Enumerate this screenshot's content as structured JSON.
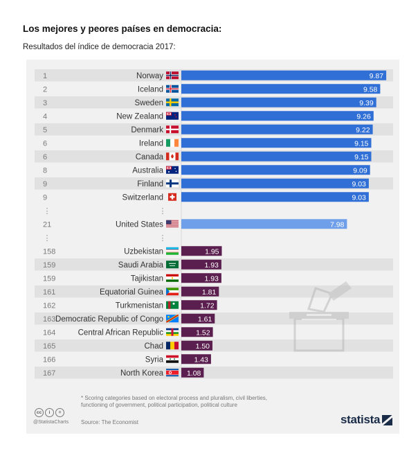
{
  "heading": {
    "title": "Los mejores y peores países en democracia:",
    "subtitle": "Resultados del índice de democracia 2017:"
  },
  "chart_data": {
    "type": "bar",
    "orientation": "horizontal",
    "title": "Los mejores y peores países en democracia:",
    "subtitle": "Resultados del índice de democracia 2017:",
    "xlim": [
      0,
      10
    ],
    "gap_marker": "⋮",
    "rows": [
      {
        "rank": "1",
        "country": "Norway",
        "value": 9.87,
        "label": "9.87",
        "group": "top",
        "flag": "norway"
      },
      {
        "rank": "2",
        "country": "Iceland",
        "value": 9.58,
        "label": "9.58",
        "group": "top",
        "flag": "iceland"
      },
      {
        "rank": "3",
        "country": "Sweden",
        "value": 9.39,
        "label": "9.39",
        "group": "top",
        "flag": "sweden"
      },
      {
        "rank": "4",
        "country": "New Zealand",
        "value": 9.26,
        "label": "9.26",
        "group": "top",
        "flag": "new-zealand"
      },
      {
        "rank": "5",
        "country": "Denmark",
        "value": 9.22,
        "label": "9.22",
        "group": "top",
        "flag": "denmark"
      },
      {
        "rank": "6",
        "country": "Ireland",
        "value": 9.15,
        "label": "9.15",
        "group": "top",
        "flag": "ireland"
      },
      {
        "rank": "6",
        "country": "Canada",
        "value": 9.15,
        "label": "9.15",
        "group": "top",
        "flag": "canada"
      },
      {
        "rank": "8",
        "country": "Australia",
        "value": 9.09,
        "label": "9.09",
        "group": "top",
        "flag": "australia"
      },
      {
        "rank": "9",
        "country": "Finland",
        "value": 9.03,
        "label": "9.03",
        "group": "top",
        "flag": "finland"
      },
      {
        "rank": "9",
        "country": "Switzerland",
        "value": 9.03,
        "label": "9.03",
        "group": "top",
        "flag": "switzerland"
      },
      {
        "gap": true
      },
      {
        "rank": "21",
        "country": "United States",
        "value": 7.98,
        "label": "7.98",
        "group": "mid",
        "flag": "united-states"
      },
      {
        "gap": true
      },
      {
        "rank": "158",
        "country": "Uzbekistan",
        "value": 1.95,
        "label": "1.95",
        "group": "bottom",
        "flag": "uzbekistan"
      },
      {
        "rank": "159",
        "country": "Saudi Arabia",
        "value": 1.93,
        "label": "1.93",
        "group": "bottom",
        "flag": "saudi-arabia"
      },
      {
        "rank": "159",
        "country": "Tajikistan",
        "value": 1.93,
        "label": "1.93",
        "group": "bottom",
        "flag": "tajikistan"
      },
      {
        "rank": "161",
        "country": "Equatorial Guinea",
        "value": 1.81,
        "label": "1.81",
        "group": "bottom",
        "flag": "equatorial-guinea"
      },
      {
        "rank": "162",
        "country": "Turkmenistan",
        "value": 1.72,
        "label": "1.72",
        "group": "bottom",
        "flag": "turkmenistan"
      },
      {
        "rank": "163",
        "country": "Democratic Republic of Congo",
        "value": 1.61,
        "label": "1.61",
        "group": "bottom",
        "flag": "dr-congo"
      },
      {
        "rank": "164",
        "country": "Central African Republic",
        "value": 1.52,
        "label": "1.52",
        "group": "bottom",
        "flag": "central-african-republic"
      },
      {
        "rank": "165",
        "country": "Chad",
        "value": 1.5,
        "label": "1.50",
        "group": "bottom",
        "flag": "chad"
      },
      {
        "rank": "166",
        "country": "Syria",
        "value": 1.43,
        "label": "1.43",
        "group": "bottom",
        "flag": "syria"
      },
      {
        "rank": "167",
        "country": "North Korea",
        "value": 1.08,
        "label": "1.08",
        "group": "bottom",
        "flag": "north-korea"
      }
    ],
    "colors": {
      "top": "#2f6fd6",
      "mid": "#6f9fe8",
      "bottom": "#5a1f4e",
      "row_band": "#e1e1e1",
      "background": "#f1f1f1"
    }
  },
  "footer": {
    "footnote": "* Scoring categories based on electoral process and pluralism, civil liberties, functioning of government, political participation, political culture",
    "source": "Source: The Economist",
    "handle": "@StatistaCharts",
    "brand": "statista",
    "license_icons": [
      "cc",
      "i",
      "="
    ]
  }
}
